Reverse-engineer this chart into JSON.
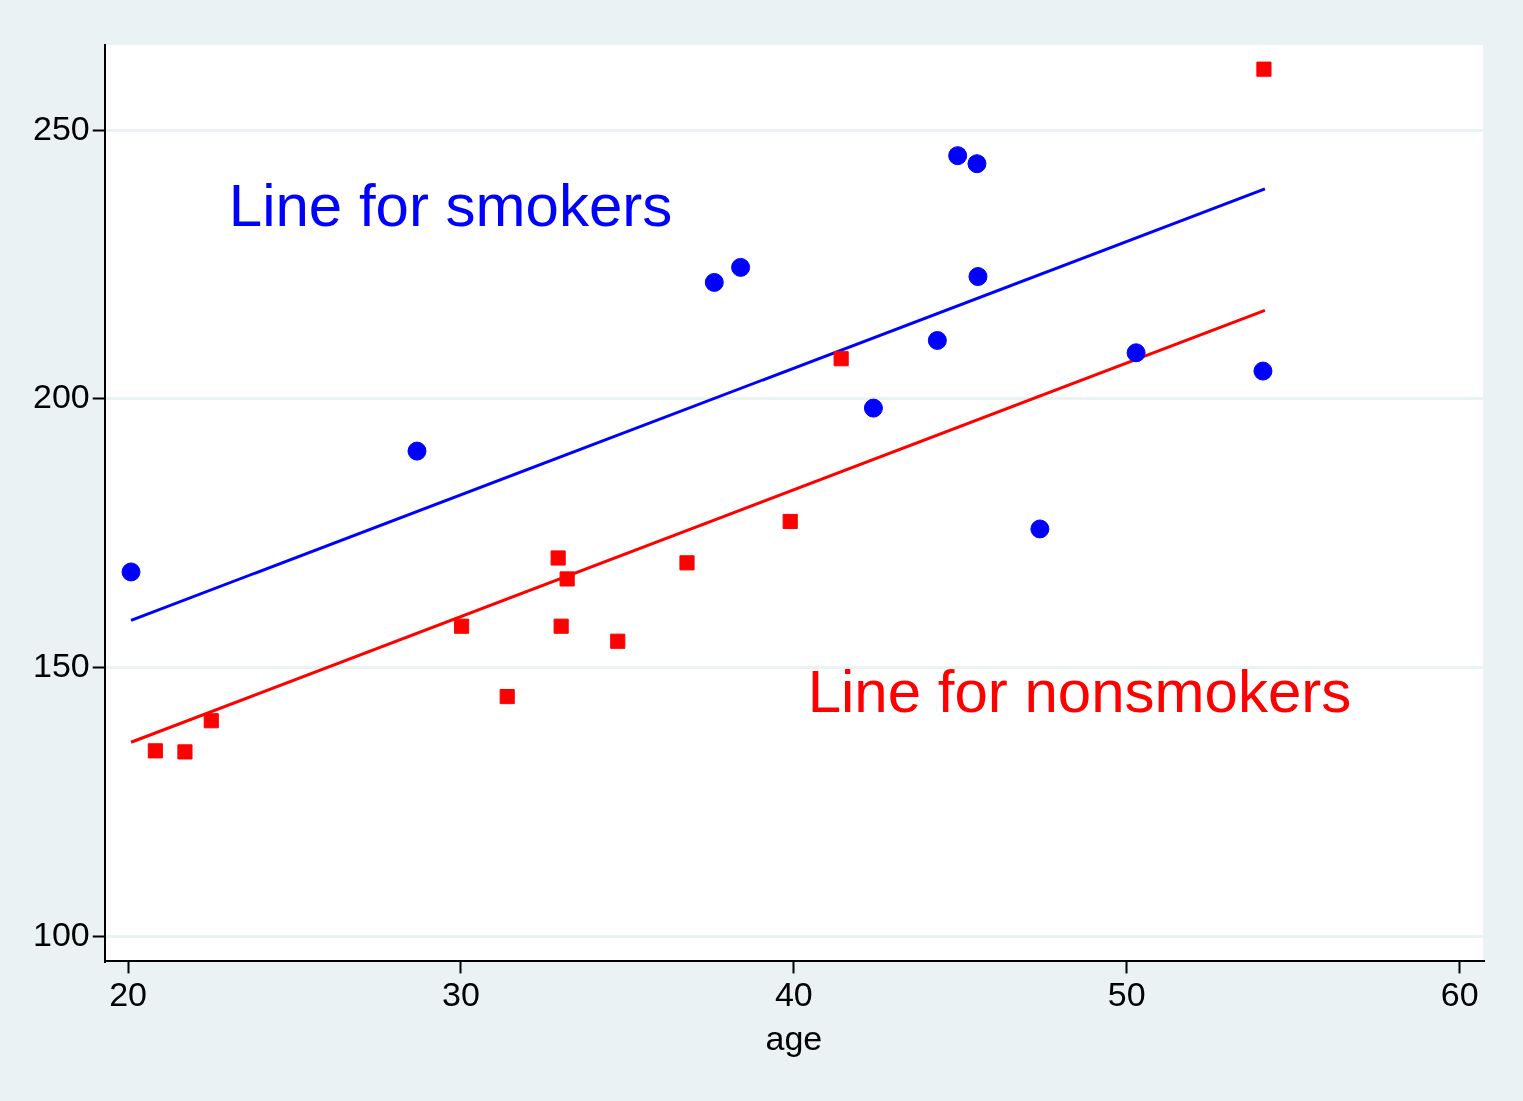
{
  "chart_data": {
    "type": "scatter",
    "xlabel": "age",
    "xlim": [
      19.3,
      60.7
    ],
    "ylim": [
      95.3,
      265.9
    ],
    "xticks": [
      20,
      30,
      40,
      50,
      60
    ],
    "yticks": [
      100,
      150,
      200,
      250
    ],
    "grid": "y",
    "legend": false,
    "series": [
      {
        "marker": "circle",
        "color": "#0000ff",
        "x": [
          20.09,
          28.68,
          37.61,
          38.4,
          44.92,
          45.5,
          45.53,
          44.31,
          42.39,
          47.39,
          50.28,
          54.09
        ],
        "values": [
          167.8,
          190.3,
          221.7,
          224.5,
          245.3,
          243.8,
          222.8,
          210.9,
          198.3,
          175.8,
          208.6,
          205.2
        ]
      },
      {
        "marker": "square",
        "color": "#ff0000",
        "x": [
          20.82,
          21.71,
          22.5,
          30.02,
          31.39,
          32.92,
          33.01,
          33.19,
          34.71,
          36.79,
          39.89,
          41.42,
          54.12
        ],
        "values": [
          134.5,
          134.3,
          140.1,
          157.7,
          144.6,
          170.4,
          157.7,
          166.5,
          154.9,
          169.5,
          177.2,
          207.5,
          261.4
        ]
      },
      {
        "type": "line",
        "name": "Line for smokers",
        "marker": "none",
        "color": "#0000ff",
        "x": [
          20.09,
          54.15
        ],
        "values": [
          158.8,
          239.1
        ]
      },
      {
        "type": "line",
        "name": "Line for nonsmokers",
        "marker": "none",
        "color": "#ff0000",
        "x": [
          20.09,
          54.15
        ],
        "values": [
          136.1,
          216.5
        ]
      }
    ]
  }
}
